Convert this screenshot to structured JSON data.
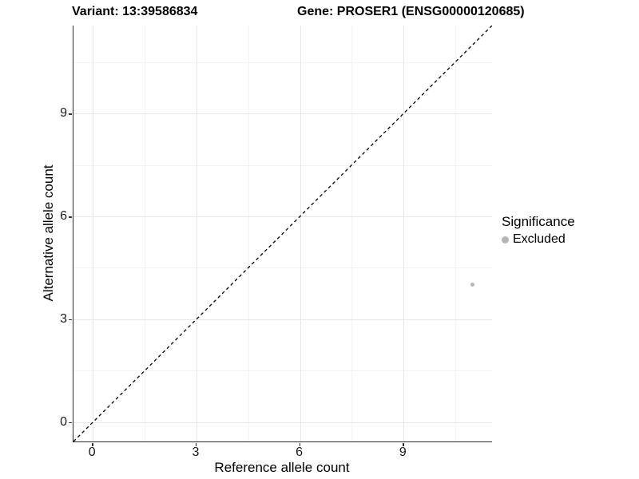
{
  "chart_data": {
    "type": "scatter",
    "title_left": "Variant: 13:39586834",
    "title_right": "Gene: PROSER1 (ENSG00000120685)",
    "xlabel": "Reference allele count",
    "ylabel": "Alternative allele count",
    "x_ticks": [
      0,
      3,
      6,
      9
    ],
    "y_ticks": [
      0,
      3,
      6,
      9
    ],
    "x_minor_ticks": [
      1.5,
      4.5,
      7.5,
      10.5
    ],
    "y_minor_ticks": [
      1.5,
      4.5,
      7.5,
      10.5
    ],
    "x_domain": [
      -0.56,
      11.56
    ],
    "y_domain": [
      -0.56,
      11.56
    ],
    "grid": true,
    "reference_line": {
      "type": "identity",
      "equation": "y = x",
      "style": "dashed",
      "color": "#000000"
    },
    "points": [
      {
        "x": 11,
        "y": 4,
        "significance": "Excluded"
      }
    ],
    "legend": {
      "title": "Significance",
      "position": "right",
      "entries": [
        {
          "label": "Excluded",
          "color": "#b5b5b5"
        }
      ]
    },
    "colors": {
      "grid_major": "#e7e7e7",
      "grid_minor": "#f3f3f3",
      "axis_line": "#2b2b2b",
      "point": "#bdbdbd"
    }
  }
}
